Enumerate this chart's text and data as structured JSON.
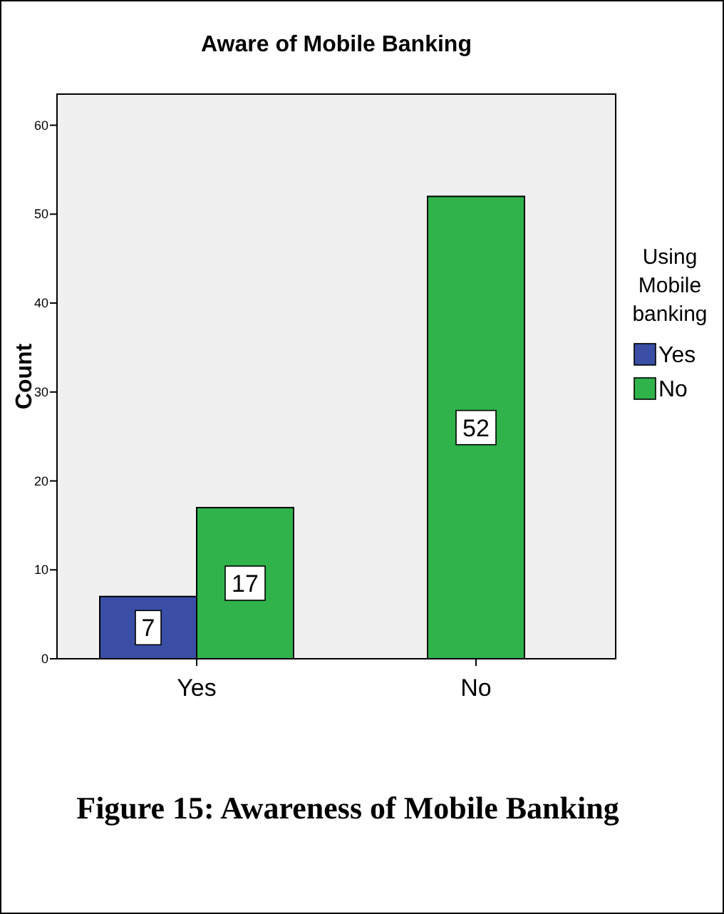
{
  "chart_data": {
    "type": "bar",
    "title": "Aware of Mobile Banking",
    "ylabel": "Count",
    "legend_title": "Using Mobile banking",
    "categories": [
      "Yes",
      "No"
    ],
    "series": [
      {
        "name": "Yes",
        "color": "#3a4ea6",
        "values": [
          7,
          null
        ]
      },
      {
        "name": "No",
        "color": "#2fb34a",
        "values": [
          17,
          52
        ]
      }
    ],
    "ylim": [
      0,
      63.5
    ],
    "yticks": [
      0,
      10,
      20,
      30,
      40,
      50,
      60
    ],
    "data_labels": true,
    "legend": "right",
    "grid": false,
    "annotations": [
      "Figure 15: Awareness of Mobile Banking"
    ]
  }
}
